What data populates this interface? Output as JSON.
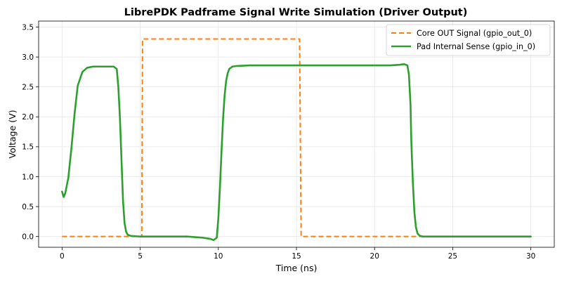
{
  "chart_data": {
    "type": "line",
    "title": "LibrePDK Padframe Signal Write Simulation (Driver Output)",
    "xlabel": "Time (ns)",
    "ylabel": "Voltage (V)",
    "xlim": [
      -1.5,
      31.5
    ],
    "ylim": [
      -0.18,
      3.6
    ],
    "xticks": [
      0,
      5,
      10,
      15,
      20,
      25,
      30
    ],
    "yticks": [
      0.0,
      0.5,
      1.0,
      1.5,
      2.0,
      2.5,
      3.0,
      3.5
    ],
    "xtick_labels": [
      "0",
      "5",
      "10",
      "15",
      "20",
      "25",
      "30"
    ],
    "ytick_labels": [
      "0.0",
      "0.5",
      "1.0",
      "1.5",
      "2.0",
      "2.5",
      "3.0",
      "3.5"
    ],
    "grid": true,
    "legend_position": "top-right",
    "series": [
      {
        "name": "Core OUT Signal (gpio_out_0)",
        "color": "#ff7f0e",
        "style": "dashed",
        "x": [
          0,
          5.0,
          5.1,
          5.15,
          15.15,
          15.2,
          15.3,
          30
        ],
        "y": [
          0,
          0,
          0,
          3.3,
          3.3,
          3.3,
          0,
          0
        ]
      },
      {
        "name": "Pad Internal Sense (gpio_in_0)",
        "color": "#2ca02c",
        "style": "solid",
        "x": [
          0,
          0.1,
          0.2,
          0.4,
          0.6,
          0.8,
          1.0,
          1.3,
          1.6,
          2.0,
          2.5,
          3.0,
          3.3,
          3.5,
          3.6,
          3.7,
          3.8,
          3.9,
          4.0,
          4.1,
          4.2,
          4.4,
          4.7,
          5.0,
          6.0,
          7.0,
          8.0,
          9.0,
          9.5,
          9.7,
          9.9,
          10.0,
          10.1,
          10.2,
          10.3,
          10.4,
          10.5,
          10.6,
          10.7,
          10.9,
          11.2,
          12.0,
          14.0,
          16.0,
          18.0,
          20.0,
          21.0,
          21.6,
          21.9,
          22.1,
          22.2,
          22.3,
          22.35,
          22.45,
          22.55,
          22.65,
          22.75,
          22.9,
          23.1,
          23.5,
          25.0,
          27.0,
          30.0
        ],
        "y": [
          0.75,
          0.66,
          0.72,
          0.98,
          1.48,
          2.05,
          2.52,
          2.75,
          2.82,
          2.84,
          2.84,
          2.84,
          2.84,
          2.8,
          2.5,
          2.0,
          1.3,
          0.6,
          0.22,
          0.08,
          0.03,
          0.01,
          0.005,
          0.0,
          0.0,
          0.0,
          0.0,
          -0.02,
          -0.04,
          -0.06,
          -0.02,
          0.3,
          0.8,
          1.4,
          1.95,
          2.35,
          2.6,
          2.73,
          2.8,
          2.84,
          2.85,
          2.86,
          2.86,
          2.86,
          2.86,
          2.86,
          2.86,
          2.87,
          2.88,
          2.86,
          2.7,
          2.2,
          1.6,
          0.9,
          0.4,
          0.15,
          0.05,
          0.01,
          0.0,
          0.0,
          0.0,
          0.0,
          0.0
        ]
      }
    ]
  }
}
